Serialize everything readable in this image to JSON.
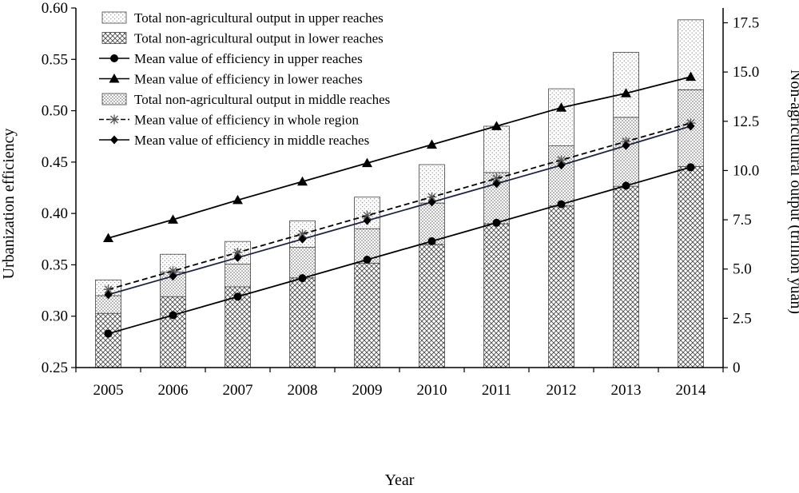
{
  "chart_data": {
    "type": "bar",
    "xlabel": "Year",
    "ylabel": "Urbanization efficiency",
    "y2label": "Non-agricultural output (trillion yuan)",
    "categories": [
      "2005",
      "2006",
      "2007",
      "2008",
      "2009",
      "2010",
      "2011",
      "2012",
      "2013",
      "2014"
    ],
    "ylim": [
      0.25,
      0.6
    ],
    "yticks": [
      "0.25",
      "0.30",
      "0.35",
      "0.40",
      "0.45",
      "0.50",
      "0.55",
      "0.60"
    ],
    "y2lim": [
      0,
      18.25
    ],
    "y2ticks": [
      "0",
      "2.5",
      "5.0",
      "7.5",
      "10.0",
      "12.5",
      "15.0",
      "17.5"
    ],
    "bar_series": [
      {
        "name": "Total non-agricultural output in lower reaches",
        "values": [
          2.75,
          3.6,
          4.1,
          4.55,
          5.3,
          6.25,
          7.3,
          8.2,
          9.2,
          10.2
        ],
        "pattern": "crosshatch"
      },
      {
        "name": "Total non-agricultural output in middle reaches",
        "values": [
          0.9,
          1.25,
          1.15,
          1.55,
          1.75,
          2.1,
          2.6,
          3.05,
          3.5,
          3.9
        ],
        "pattern": "dots"
      },
      {
        "name": "Total non-agricultural output in upper reaches",
        "values": [
          0.8,
          0.9,
          1.15,
          1.35,
          1.6,
          1.95,
          2.35,
          2.9,
          3.3,
          3.55
        ],
        "pattern": "sparse-dots"
      }
    ],
    "line_series": [
      {
        "name": "Mean value of efficiency in upper reaches",
        "marker": "circle",
        "dash": false,
        "values": [
          0.283,
          0.301,
          0.319,
          0.337,
          0.355,
          0.373,
          0.391,
          0.409,
          0.427,
          0.445
        ]
      },
      {
        "name": "Mean value of efficiency in lower reaches",
        "marker": "triangle",
        "dash": false,
        "values": [
          0.376,
          0.394,
          0.413,
          0.431,
          0.449,
          0.467,
          0.485,
          0.503,
          0.517,
          0.533
        ]
      },
      {
        "name": "Mean value of efficiency in whole region",
        "marker": "asterisk",
        "dash": true,
        "values": [
          0.326,
          0.344,
          0.362,
          0.38,
          0.398,
          0.416,
          0.434,
          0.452,
          0.47,
          0.488
        ]
      },
      {
        "name": "Mean value of efficiency in middle reaches",
        "marker": "diamond",
        "dash": false,
        "values": [
          0.321,
          0.339,
          0.357,
          0.375,
          0.393,
          0.411,
          0.429,
          0.447,
          0.466,
          0.485
        ]
      }
    ],
    "legend": [
      {
        "label": "Total non-agricultural output in upper reaches",
        "kind": "bar",
        "pattern": "sparse-dots"
      },
      {
        "label": "Total non-agricultural output in lower reaches",
        "kind": "bar",
        "pattern": "crosshatch"
      },
      {
        "label": "Mean value of efficiency in upper reaches",
        "kind": "line",
        "marker": "circle",
        "dash": false
      },
      {
        "label": "Mean value of efficiency in lower reaches",
        "kind": "line",
        "marker": "triangle",
        "dash": false
      },
      {
        "label": "Total non-agricultural output in middle reaches",
        "kind": "bar",
        "pattern": "dots"
      },
      {
        "label": "Mean value of efficiency in whole region",
        "kind": "line",
        "marker": "asterisk",
        "dash": true
      },
      {
        "label": "Mean value of efficiency in middle reaches",
        "kind": "line",
        "marker": "diamond",
        "dash": false
      }
    ],
    "legend_position": "top-left",
    "grid": false
  }
}
